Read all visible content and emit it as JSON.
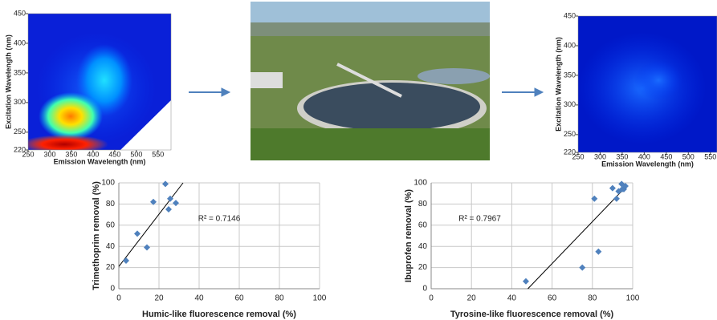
{
  "chart_data": [
    {
      "type": "heatmap",
      "xlim": [
        250,
        580
      ],
      "xticks": [
        250,
        300,
        350,
        400,
        450,
        500,
        550
      ],
      "ylim": [
        220,
        450
      ],
      "yticks": [
        220,
        250,
        300,
        350,
        400,
        450
      ],
      "xlabel": "Emission Wavelength (nm)",
      "ylabel": "Excitation Wavelength (nm)"
    },
    {
      "type": "heatmap",
      "xlim": [
        250,
        565
      ],
      "xticks": [
        250,
        300,
        350,
        400,
        450,
        500,
        550
      ],
      "ylim": [
        220,
        450
      ],
      "yticks": [
        220,
        250,
        300,
        350,
        400,
        450
      ],
      "xlabel": "Emission Wavelength (nm)",
      "ylabel": "Excitation Wavelength (nm)"
    },
    {
      "type": "scatter",
      "color": "#4f81bd",
      "xlim": [
        0,
        100
      ],
      "xticks": [
        0,
        20,
        40,
        60,
        80,
        100
      ],
      "ylim": [
        0,
        100
      ],
      "yticks": [
        0,
        20,
        40,
        60,
        80,
        100
      ],
      "grid": true,
      "xlabel": "Humic-like fluorescence removal (%)",
      "ylabel": "Trimethoprim removal (%)",
      "annotation": "R² = 0.7146",
      "x": [
        3.6,
        9.2,
        17.2,
        14,
        23.2,
        25.6,
        24.8,
        28.4
      ],
      "values": [
        26.5,
        52,
        82,
        39,
        99,
        85,
        75,
        81
      ],
      "trendline": {
        "x": [
          0,
          32
        ],
        "values": [
          21,
          100
        ]
      }
    },
    {
      "type": "scatter",
      "color": "#4f81bd",
      "xlim": [
        0,
        100
      ],
      "xticks": [
        0,
        20,
        40,
        60,
        80,
        100
      ],
      "ylim": [
        0,
        100
      ],
      "yticks": [
        0,
        20,
        40,
        60,
        80,
        100
      ],
      "grid": true,
      "xlabel": "Tyrosine-like fluorescence removal (%)",
      "ylabel": "Ibuprofen removal (%)",
      "annotation": "R² = 0.7967",
      "x": [
        47,
        75,
        83,
        81,
        90,
        92,
        93,
        94.5,
        95.6,
        96.4,
        94.8
      ],
      "values": [
        7,
        20,
        35,
        85,
        95,
        85,
        92,
        99,
        94,
        97,
        94
      ],
      "trendline": {
        "x": [
          48,
          97
        ],
        "values": [
          0,
          97
        ]
      }
    }
  ]
}
